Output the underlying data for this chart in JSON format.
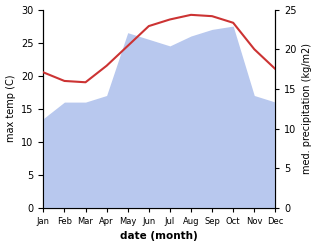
{
  "months": [
    "Jan",
    "Feb",
    "Mar",
    "Apr",
    "May",
    "Jun",
    "Jul",
    "Aug",
    "Sep",
    "Oct",
    "Nov",
    "Dec"
  ],
  "month_x": [
    0,
    1,
    2,
    3,
    4,
    5,
    6,
    7,
    8,
    9,
    10,
    11
  ],
  "temperature": [
    20.5,
    19.2,
    19.0,
    21.5,
    24.5,
    27.5,
    28.5,
    29.2,
    29.0,
    28.0,
    24.0,
    21.0
  ],
  "precipitation": [
    13.5,
    16.0,
    16.0,
    17.0,
    26.5,
    25.5,
    24.5,
    26.0,
    27.0,
    27.5,
    17.0,
    16.0
  ],
  "temp_color": "#cc3333",
  "precip_color": "#b8c8ee",
  "temp_ylim": [
    0,
    30
  ],
  "precip_ylim": [
    0,
    30
  ],
  "right_ylim": [
    0,
    25
  ],
  "temp_yticks": [
    0,
    5,
    10,
    15,
    20,
    25,
    30
  ],
  "precip_yticks_right": [
    0,
    5,
    10,
    15,
    20,
    25
  ],
  "precip_ytick_labels_right": [
    "0",
    "5",
    "10",
    "15",
    "20",
    "25"
  ],
  "ylabel_left": "max temp (C)",
  "ylabel_right": "med. precipitation (kg/m2)",
  "xlabel": "date (month)",
  "figsize": [
    3.18,
    2.47
  ],
  "dpi": 100
}
